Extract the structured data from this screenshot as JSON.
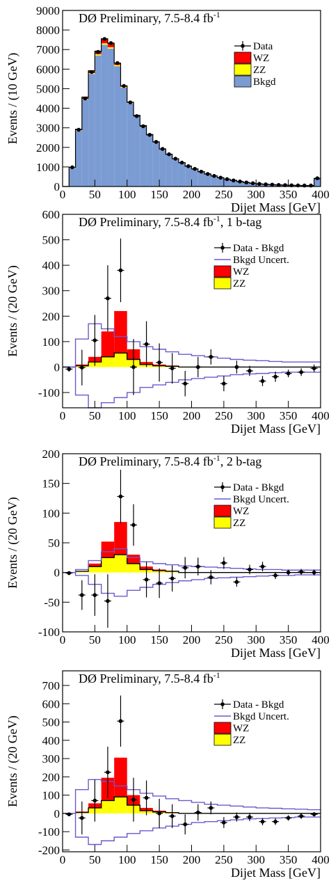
{
  "colors": {
    "wz": "#ff0000",
    "zz": "#ffff00",
    "bkgd": "#7b9bd3",
    "uncert": "#6a5acd",
    "data": "#000000"
  },
  "chart_data": [
    {
      "type": "histogram",
      "title": "DØ Preliminary, 7.5-8.4 fb",
      "title_sup": "-1",
      "title_suffix": "",
      "xlabel": "Dijet Mass [GeV]",
      "ylabel": "Events / (10 GeV)",
      "xlim": [
        0,
        400
      ],
      "ylim": [
        0,
        9000
      ],
      "yticks": [
        0,
        1000,
        2000,
        3000,
        4000,
        5000,
        6000,
        7000,
        8000,
        9000
      ],
      "xticks": [
        0,
        50,
        100,
        150,
        200,
        250,
        300,
        350,
        400
      ],
      "bin_width": 10,
      "bin_edges_start": 0,
      "legend_position": "top-right",
      "legend": [
        {
          "kind": "data",
          "label": "Data"
        },
        {
          "kind": "wz",
          "label": "WZ"
        },
        {
          "kind": "zz",
          "label": "ZZ"
        },
        {
          "kind": "bkgd",
          "label": "Bkgd"
        }
      ],
      "bkgd": [
        0,
        950,
        2850,
        4450,
        5750,
        6700,
        7250,
        7050,
        6150,
        5050,
        4250,
        3600,
        3100,
        2650,
        2280,
        1920,
        1650,
        1420,
        1220,
        1040,
        900,
        760,
        640,
        540,
        450,
        375,
        310,
        255,
        205,
        165,
        135,
        110,
        95,
        80,
        70,
        60,
        55,
        50,
        50,
        400
      ],
      "zz": [
        0,
        10,
        25,
        40,
        50,
        60,
        70,
        70,
        60,
        45,
        30,
        20,
        10,
        5,
        0,
        0,
        0,
        0,
        0,
        0,
        0,
        0,
        0,
        0,
        0,
        0,
        0,
        0,
        0,
        0,
        0,
        0,
        0,
        0,
        0,
        0,
        0,
        0,
        0,
        0
      ],
      "wz": [
        0,
        20,
        50,
        80,
        120,
        160,
        230,
        200,
        100,
        50,
        30,
        20,
        10,
        5,
        0,
        0,
        0,
        0,
        0,
        0,
        0,
        0,
        0,
        0,
        0,
        0,
        0,
        0,
        0,
        0,
        0,
        0,
        0,
        0,
        0,
        0,
        0,
        0,
        0,
        0
      ],
      "data": [
        {
          "x": 15,
          "y": 980
        },
        {
          "x": 25,
          "y": 2900
        },
        {
          "x": 35,
          "y": 4500
        },
        {
          "x": 45,
          "y": 5850
        },
        {
          "x": 55,
          "y": 6880
        },
        {
          "x": 65,
          "y": 7540
        },
        {
          "x": 75,
          "y": 7330
        },
        {
          "x": 85,
          "y": 6310
        },
        {
          "x": 95,
          "y": 5140
        },
        {
          "x": 105,
          "y": 4300
        },
        {
          "x": 115,
          "y": 3600
        },
        {
          "x": 125,
          "y": 3080
        },
        {
          "x": 135,
          "y": 2640
        },
        {
          "x": 145,
          "y": 2280
        },
        {
          "x": 155,
          "y": 1920
        },
        {
          "x": 165,
          "y": 1650
        },
        {
          "x": 175,
          "y": 1420
        },
        {
          "x": 185,
          "y": 1220
        },
        {
          "x": 195,
          "y": 1040
        },
        {
          "x": 205,
          "y": 900
        },
        {
          "x": 215,
          "y": 760
        },
        {
          "x": 225,
          "y": 640
        },
        {
          "x": 235,
          "y": 540
        },
        {
          "x": 245,
          "y": 450
        },
        {
          "x": 255,
          "y": 375
        },
        {
          "x": 265,
          "y": 310
        },
        {
          "x": 275,
          "y": 255
        },
        {
          "x": 285,
          "y": 205
        },
        {
          "x": 295,
          "y": 165
        },
        {
          "x": 305,
          "y": 135
        },
        {
          "x": 315,
          "y": 110
        },
        {
          "x": 325,
          "y": 95
        },
        {
          "x": 335,
          "y": 80
        },
        {
          "x": 345,
          "y": 70
        },
        {
          "x": 355,
          "y": 60
        },
        {
          "x": 365,
          "y": 55
        },
        {
          "x": 375,
          "y": 50
        },
        {
          "x": 385,
          "y": 50
        },
        {
          "x": 395,
          "y": 420
        }
      ]
    },
    {
      "type": "histogram",
      "title": "DØ Preliminary, 7.5-8.4 fb",
      "title_sup": "-1",
      "title_suffix": ", 1 b-tag",
      "xlabel": "Dijet Mass [GeV]",
      "ylabel": "Events / (20 GeV)",
      "xlim": [
        0,
        400
      ],
      "ylim": [
        -160,
        600
      ],
      "yticks": [
        -100,
        0,
        100,
        200,
        300,
        400,
        500,
        600
      ],
      "xticks": [
        0,
        50,
        100,
        150,
        200,
        250,
        300,
        350,
        400
      ],
      "bin_width": 20,
      "bin_edges_start": 0,
      "legend_position": "top-right",
      "legend": [
        {
          "kind": "data",
          "label": "Data - Bkgd"
        },
        {
          "kind": "uncert",
          "label": "Bkgd Uncert."
        },
        {
          "kind": "wz",
          "label": "WZ"
        },
        {
          "kind": "zz",
          "label": "ZZ"
        }
      ],
      "uncert_up": [
        0,
        110,
        170,
        150,
        120,
        100,
        80,
        70,
        60,
        50,
        45,
        40,
        35,
        30,
        27,
        25,
        22,
        20,
        20,
        20
      ],
      "uncert_down": [
        0,
        -110,
        -160,
        -140,
        -120,
        -100,
        -80,
        -70,
        -60,
        -50,
        -45,
        -40,
        -35,
        -30,
        -27,
        -25,
        -22,
        -20,
        -20,
        -20
      ],
      "zz": [
        0,
        5,
        20,
        40,
        55,
        30,
        10,
        5,
        3,
        0,
        0,
        0,
        0,
        0,
        0,
        0,
        0,
        0,
        0,
        0
      ],
      "wz": [
        0,
        5,
        20,
        100,
        165,
        40,
        10,
        5,
        3,
        0,
        0,
        0,
        0,
        0,
        0,
        0,
        0,
        0,
        0,
        0
      ],
      "data": [
        {
          "x": 10,
          "y": -8,
          "err": 10
        },
        {
          "x": 30,
          "y": -2,
          "err": 70
        },
        {
          "x": 50,
          "y": 105,
          "err": 100
        },
        {
          "x": 70,
          "y": 270,
          "err": 130
        },
        {
          "x": 90,
          "y": 380,
          "err": 125
        },
        {
          "x": 110,
          "y": 0,
          "err": 110
        },
        {
          "x": 130,
          "y": 90,
          "err": 90
        },
        {
          "x": 150,
          "y": 18,
          "err": 75
        },
        {
          "x": 170,
          "y": -5,
          "err": 60
        },
        {
          "x": 190,
          "y": -65,
          "err": 50
        },
        {
          "x": 210,
          "y": 0,
          "err": 40
        },
        {
          "x": 230,
          "y": 40,
          "err": 30
        },
        {
          "x": 250,
          "y": -65,
          "err": 30
        },
        {
          "x": 270,
          "y": 0,
          "err": 25
        },
        {
          "x": 290,
          "y": -15,
          "err": 20
        },
        {
          "x": 310,
          "y": -55,
          "err": 20
        },
        {
          "x": 330,
          "y": -38,
          "err": 20
        },
        {
          "x": 350,
          "y": -25,
          "err": 15
        },
        {
          "x": 370,
          "y": -20,
          "err": 15
        },
        {
          "x": 390,
          "y": -5,
          "err": 15
        }
      ]
    },
    {
      "type": "histogram",
      "title": "DØ Preliminary, 7.5-8.4 fb",
      "title_sup": "-1",
      "title_suffix": ", 2 b-tag",
      "xlabel": "Dijet Mass [GeV]",
      "ylabel": "Events / (20 GeV)",
      "xlim": [
        0,
        400
      ],
      "ylim": [
        -100,
        200
      ],
      "yticks": [
        -100,
        -50,
        0,
        50,
        100,
        150,
        200
      ],
      "xticks": [
        0,
        50,
        100,
        150,
        200,
        250,
        300,
        350,
        400
      ],
      "bin_width": 20,
      "bin_edges_start": 0,
      "legend_position": "top-right",
      "legend": [
        {
          "kind": "data",
          "label": "Data - Bkgd"
        },
        {
          "kind": "uncert",
          "label": "Bkgd Uncert."
        },
        {
          "kind": "wz",
          "label": "WZ"
        },
        {
          "kind": "zz",
          "label": "ZZ"
        }
      ],
      "uncert_up": [
        0,
        5,
        20,
        35,
        40,
        25,
        18,
        15,
        13,
        11,
        10,
        9,
        8,
        7,
        6,
        5,
        5,
        4,
        4,
        4
      ],
      "uncert_down": [
        0,
        -5,
        -20,
        -35,
        -40,
        -30,
        -25,
        -20,
        -17,
        -14,
        -12,
        -10,
        -9,
        -8,
        -7,
        -6,
        -5,
        -5,
        -4,
        -4
      ],
      "zz": [
        0,
        2,
        10,
        25,
        30,
        15,
        5,
        3,
        2,
        0,
        0,
        0,
        0,
        0,
        0,
        0,
        0,
        0,
        0,
        0
      ],
      "wz": [
        0,
        0,
        5,
        27,
        55,
        15,
        5,
        2,
        1,
        0,
        0,
        0,
        0,
        0,
        0,
        0,
        0,
        0,
        0,
        0
      ],
      "data": [
        {
          "x": 10,
          "y": -1,
          "err": 2
        },
        {
          "x": 30,
          "y": -38,
          "err": 25
        },
        {
          "x": 50,
          "y": -38,
          "err": 35
        },
        {
          "x": 70,
          "y": -48,
          "err": 45
        },
        {
          "x": 90,
          "y": 128,
          "err": 45
        },
        {
          "x": 110,
          "y": 80,
          "err": 35
        },
        {
          "x": 130,
          "y": -12,
          "err": 30
        },
        {
          "x": 150,
          "y": -18,
          "err": 25
        },
        {
          "x": 170,
          "y": -10,
          "err": 22
        },
        {
          "x": 190,
          "y": 8,
          "err": 18
        },
        {
          "x": 210,
          "y": 10,
          "err": 15
        },
        {
          "x": 230,
          "y": -8,
          "err": 12
        },
        {
          "x": 250,
          "y": 16,
          "err": 10
        },
        {
          "x": 270,
          "y": -16,
          "err": 8
        },
        {
          "x": 290,
          "y": 5,
          "err": 8
        },
        {
          "x": 310,
          "y": 10,
          "err": 8
        },
        {
          "x": 330,
          "y": -5,
          "err": 6
        },
        {
          "x": 350,
          "y": 0,
          "err": 5
        },
        {
          "x": 370,
          "y": 1,
          "err": 5
        },
        {
          "x": 390,
          "y": 0,
          "err": 5
        }
      ]
    },
    {
      "type": "histogram",
      "title": "DØ Preliminary, 7.5-8.4 fb",
      "title_sup": "-1",
      "title_suffix": "",
      "xlabel": "Dijet Mass [GeV]",
      "ylabel": "Events / (20 GeV)",
      "xlim": [
        0,
        400
      ],
      "ylim": [
        -210,
        780
      ],
      "yticks": [
        -200,
        -100,
        0,
        100,
        200,
        300,
        400,
        500,
        600,
        700
      ],
      "xticks": [
        0,
        50,
        100,
        150,
        200,
        250,
        300,
        350,
        400
      ],
      "bin_width": 20,
      "bin_edges_start": 0,
      "legend_position": "top-right",
      "legend": [
        {
          "kind": "data",
          "label": "Data - Bkgd"
        },
        {
          "kind": "uncert",
          "label": "Bkgd Uncert."
        },
        {
          "kind": "wz",
          "label": "WZ"
        },
        {
          "kind": "zz",
          "label": "ZZ"
        }
      ],
      "uncert_up": [
        0,
        130,
        185,
        175,
        150,
        130,
        110,
        95,
        80,
        70,
        60,
        50,
        45,
        40,
        35,
        30,
        28,
        25,
        23,
        20
      ],
      "uncert_down": [
        0,
        -130,
        -170,
        -150,
        -130,
        -110,
        -95,
        -80,
        -70,
        -60,
        -50,
        -45,
        -40,
        -35,
        -30,
        -28,
        -25,
        -23,
        -20,
        -20
      ],
      "zz": [
        0,
        5,
        30,
        70,
        90,
        45,
        15,
        8,
        4,
        0,
        0,
        0,
        0,
        0,
        0,
        0,
        0,
        0,
        0,
        0
      ],
      "wz": [
        0,
        5,
        25,
        125,
        215,
        55,
        15,
        7,
        3,
        0,
        0,
        0,
        0,
        0,
        0,
        0,
        0,
        0,
        0,
        0
      ],
      "data": [
        {
          "x": 10,
          "y": -5,
          "err": 10
        },
        {
          "x": 30,
          "y": -25,
          "err": 90
        },
        {
          "x": 50,
          "y": 70,
          "err": 115
        },
        {
          "x": 70,
          "y": 225,
          "err": 140
        },
        {
          "x": 90,
          "y": 505,
          "err": 140
        },
        {
          "x": 110,
          "y": 75,
          "err": 120
        },
        {
          "x": 130,
          "y": 85,
          "err": 95
        },
        {
          "x": 150,
          "y": 0,
          "err": 80
        },
        {
          "x": 170,
          "y": -15,
          "err": 65
        },
        {
          "x": 190,
          "y": -60,
          "err": 55
        },
        {
          "x": 210,
          "y": 5,
          "err": 45
        },
        {
          "x": 230,
          "y": 30,
          "err": 35
        },
        {
          "x": 250,
          "y": -50,
          "err": 30
        },
        {
          "x": 270,
          "y": -20,
          "err": 25
        },
        {
          "x": 290,
          "y": -20,
          "err": 22
        },
        {
          "x": 310,
          "y": -45,
          "err": 20
        },
        {
          "x": 330,
          "y": -45,
          "err": 18
        },
        {
          "x": 350,
          "y": -25,
          "err": 15
        },
        {
          "x": 370,
          "y": -15,
          "err": 15
        },
        {
          "x": 390,
          "y": -5,
          "err": 12
        }
      ]
    }
  ]
}
